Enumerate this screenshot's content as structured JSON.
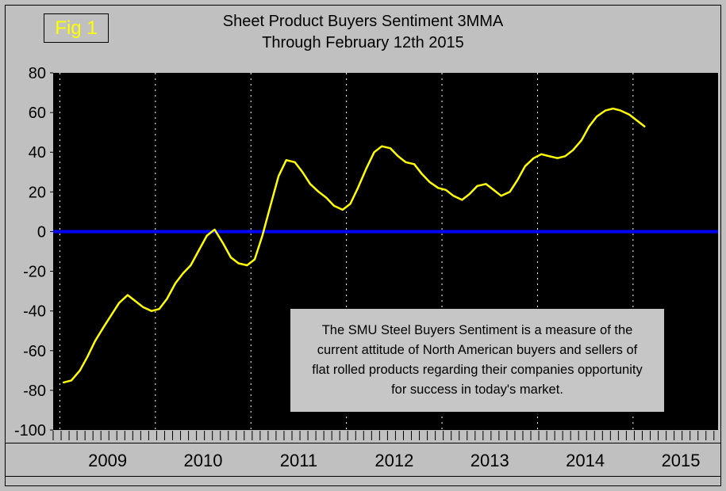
{
  "figure": {
    "fig_label": "Fig 1",
    "title_line1": "Sheet Product Buyers Sentiment 3MMA",
    "title_line2": "Through February 12th 2015"
  },
  "annotation": {
    "line1": "The SMU Steel Buyers Sentiment is a measure of the",
    "line2": "current attitude of North American buyers and sellers of",
    "line3": "flat rolled products regarding their companies opportunity",
    "line4": "for success in today's market."
  },
  "colors": {
    "background": "#c0c0c0",
    "plot_background": "#000000",
    "series_line": "#ffff00",
    "zero_line": "#0000ff",
    "gridline": "#ffffff",
    "text": "#000000",
    "fig_label_text": "#ffff00"
  },
  "chart_data": {
    "type": "line",
    "title": "Sheet Product Buyers Sentiment 3MMA Through February 12th 2015",
    "x_label_years": [
      2009,
      2010,
      2011,
      2012,
      2013,
      2014,
      2015
    ],
    "y_ticks": [
      80,
      60,
      40,
      20,
      0,
      -20,
      -40,
      -60,
      -80,
      -100
    ],
    "ylim": [
      -100,
      80
    ],
    "x_range": [
      2008.93,
      2015.89
    ],
    "zero_line_value": 0,
    "grid": "vertical-dotted",
    "legend": "none",
    "series": [
      {
        "name": "Sheet Product Buyers Sentiment 3MMA",
        "color": "#ffff00",
        "x": [
          2009.04,
          2009.12,
          2009.21,
          2009.29,
          2009.37,
          2009.46,
          2009.54,
          2009.62,
          2009.71,
          2009.79,
          2009.87,
          2009.96,
          2010.04,
          2010.12,
          2010.21,
          2010.29,
          2010.37,
          2010.46,
          2010.54,
          2010.62,
          2010.71,
          2010.79,
          2010.87,
          2010.96,
          2011.04,
          2011.12,
          2011.21,
          2011.29,
          2011.37,
          2011.46,
          2011.54,
          2011.62,
          2011.71,
          2011.79,
          2011.87,
          2011.96,
          2012.04,
          2012.12,
          2012.21,
          2012.29,
          2012.37,
          2012.46,
          2012.54,
          2012.62,
          2012.71,
          2012.79,
          2012.87,
          2012.96,
          2013.04,
          2013.12,
          2013.21,
          2013.29,
          2013.37,
          2013.46,
          2013.54,
          2013.62,
          2013.71,
          2013.79,
          2013.87,
          2013.96,
          2014.04,
          2014.12,
          2014.21,
          2014.29,
          2014.37,
          2014.46,
          2014.54,
          2014.62,
          2014.71,
          2014.79,
          2014.87,
          2014.96,
          2015.04,
          2015.12
        ],
        "values": [
          -76,
          -75,
          -70,
          -63,
          -55,
          -48,
          -42,
          -36,
          -32,
          -35,
          -38,
          -40,
          -39,
          -34,
          -26,
          -21,
          -17,
          -9,
          -2,
          1,
          -6,
          -13,
          -16,
          -17,
          -14,
          -2,
          14,
          28,
          36,
          35,
          30,
          24,
          20,
          17,
          13,
          11,
          14,
          22,
          32,
          40,
          43,
          42,
          38,
          35,
          34,
          29,
          25,
          22,
          21,
          18,
          16,
          19,
          23,
          24,
          21,
          18,
          20,
          26,
          33,
          37,
          39,
          38,
          37,
          38,
          41,
          46,
          53,
          58,
          61,
          62,
          61,
          59,
          56,
          53
        ]
      }
    ]
  }
}
